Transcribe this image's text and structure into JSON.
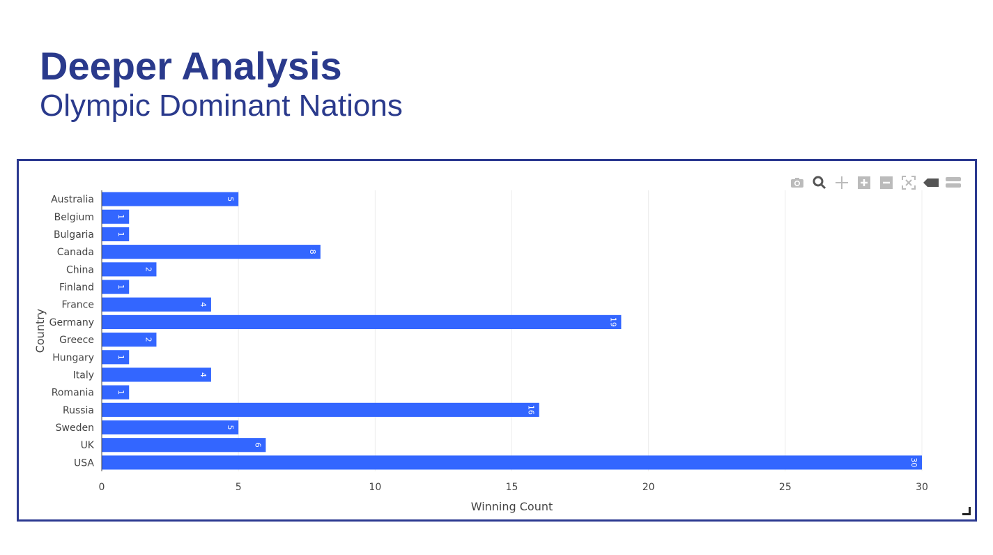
{
  "slide": {
    "title": "Deeper Analysis",
    "subtitle": "Olympic Dominant Nations"
  },
  "toolbar": {
    "icons": [
      "camera-icon",
      "zoom-icon",
      "pan-icon",
      "zoom-in-icon",
      "zoom-out-icon",
      "autoscale-icon",
      "hover-closest-icon",
      "hover-compare-icon"
    ]
  },
  "colors": {
    "bar": "#3366ff",
    "title": "#2a3a8c",
    "frame": "#2b3990"
  },
  "chart_data": {
    "type": "bar",
    "orientation": "horizontal",
    "categories": [
      "Australia",
      "Belgium",
      "Bulgaria",
      "Canada",
      "China",
      "Finland",
      "France",
      "Germany",
      "Greece",
      "Hungary",
      "Italy",
      "Romania",
      "Russia",
      "Sweden",
      "UK",
      "USA"
    ],
    "values": [
      5,
      1,
      1,
      8,
      2,
      1,
      4,
      19,
      2,
      1,
      4,
      1,
      16,
      5,
      6,
      30
    ],
    "xlabel": "Winning Count",
    "ylabel": "Country",
    "xlim": [
      0,
      30
    ],
    "xticks": [
      0,
      5,
      10,
      15,
      20,
      25,
      30
    ],
    "grid": true,
    "bar_labels": "inside-end-rotated"
  }
}
